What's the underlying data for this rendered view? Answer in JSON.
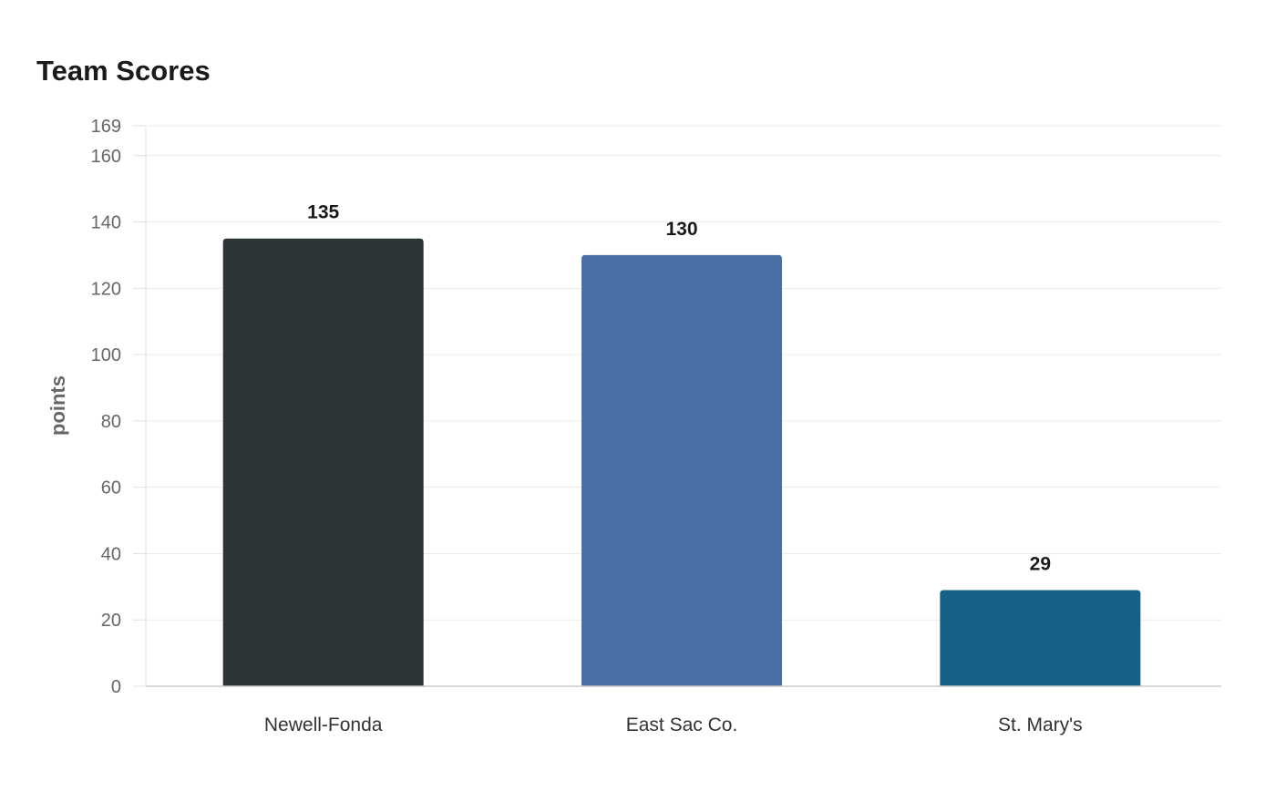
{
  "chart_data": {
    "type": "bar",
    "title": "Team Scores",
    "xlabel": "",
    "ylabel": "points",
    "categories": [
      "Newell-Fonda",
      "East Sac Co.",
      "St. Mary's"
    ],
    "values": [
      135,
      130,
      29
    ],
    "colors": [
      "#2d3436",
      "#4a6fa5",
      "#166088"
    ],
    "ylim": [
      0,
      169
    ],
    "yticks": [
      0,
      20,
      40,
      60,
      80,
      100,
      120,
      140,
      160,
      169
    ],
    "grid": true,
    "legend": "none"
  }
}
